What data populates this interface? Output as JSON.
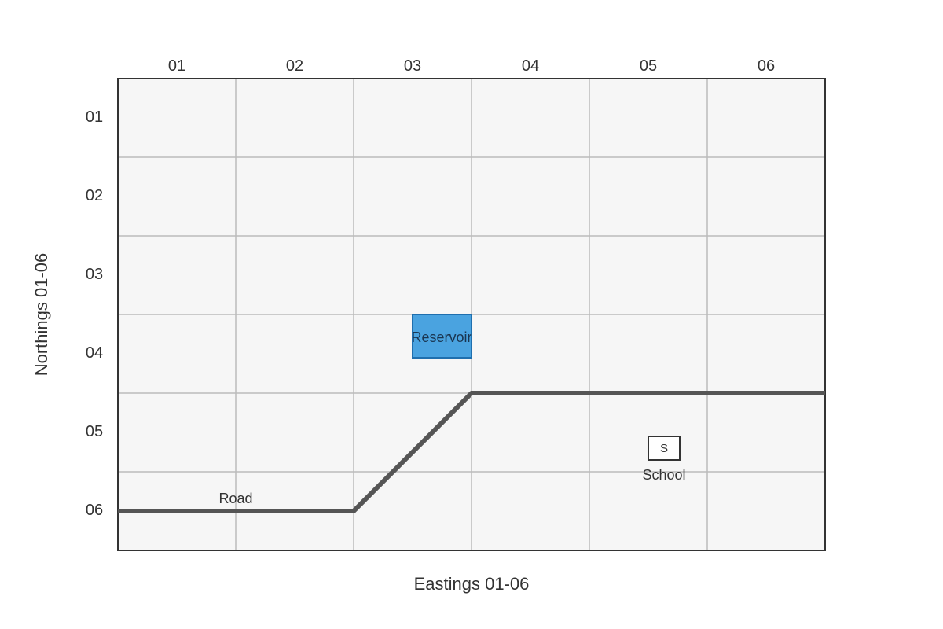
{
  "map": {
    "grid": {
      "eastings": [
        "01",
        "02",
        "03",
        "04",
        "05",
        "06"
      ],
      "northings": [
        "01",
        "02",
        "03",
        "04",
        "05",
        "06"
      ]
    },
    "axes": {
      "x_title": "Eastings 01-06",
      "y_title": "Northings 01-06"
    },
    "colors": {
      "background": "#f6f6f6",
      "grid_line": "#bbbbbb",
      "frame": "#333333",
      "road": "#555555",
      "reservoir_fill": "#4aa3e0",
      "reservoir_stroke": "#1f6fae"
    },
    "features": {
      "reservoir": {
        "label": "Reservoir"
      },
      "road": {
        "label": "Road"
      },
      "school": {
        "label": "School",
        "symbol": "S"
      }
    }
  }
}
